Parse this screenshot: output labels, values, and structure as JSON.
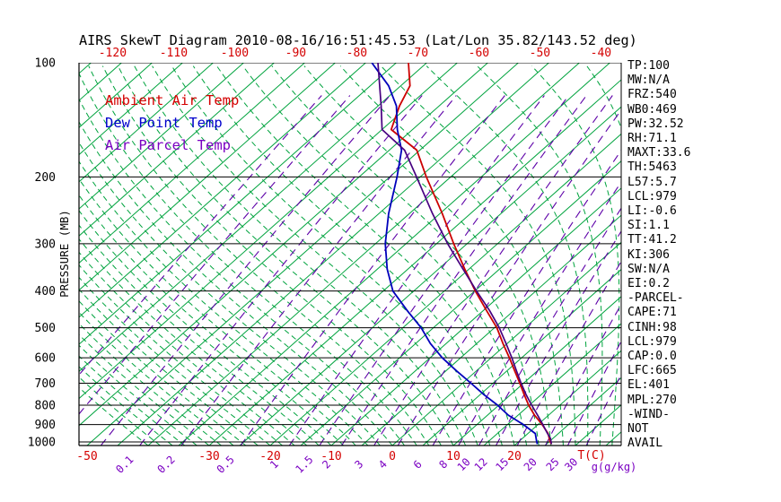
{
  "title": "AIRS SkewT Diagram 2010-08-16/16:51:45.53 (Lat/Lon 35.82/143.52 deg)",
  "colors": {
    "isotherm": "#00a33e",
    "moist_adiabat": "#00a33e",
    "mixing_ratio": "#5d00a8",
    "mixing_label": "#7a00c2",
    "temp": "#cc0000",
    "temp_label": "#d40000",
    "dewpoint": "#0000bb",
    "parcel": "#470080",
    "axis": "#000000"
  },
  "legend": {
    "items": [
      {
        "label": "Ambient Air Temp",
        "color": "#d40000"
      },
      {
        "label": "Dew Point Temp",
        "color": "#0000cc"
      },
      {
        "label": "Air Parcel Temp",
        "color": "#7a00c2"
      }
    ]
  },
  "axes": {
    "y_label": "PRESSURE (MB)",
    "pressure_ticks": [
      100,
      200,
      300,
      400,
      500,
      600,
      700,
      800,
      900,
      1000
    ],
    "top_temp_ticks": [
      -120,
      -110,
      -100,
      -90,
      -80,
      -70,
      -60,
      -50,
      -40
    ],
    "bottom_temp_ticks": [
      -50,
      -30,
      -20,
      -10,
      0,
      10,
      20
    ],
    "x_label_temp": "T(C)",
    "x_label_mixing": "g(g/kg)"
  },
  "stats_panel": [
    "TP:100",
    "MW:N/A",
    "FRZ:540",
    "WB0:469",
    "PW:32.52",
    "RH:71.1",
    "MAXT:33.6",
    "TH:5463",
    "L57:5.7",
    "LCL:979",
    "LI:-0.6",
    "SI:1.1",
    "TT:41.2",
    "KI:306",
    "SW:N/A",
    "EI:0.2",
    "-PARCEL-",
    "CAPE:71",
    "CINH:98",
    "LCL:979",
    "CAP:0.0",
    "LFC:665",
    "EL:401",
    "MPL:270",
    "-WIND-",
    "NOT",
    "AVAIL"
  ],
  "chart_data": {
    "type": "line",
    "subtype": "skew-t-log-p",
    "title": "AIRS SkewT Diagram 2010-08-16/16:51:45.53 (Lat/Lon 35.82/143.52 deg)",
    "xlabel": "Temperature (C), skewed isotherms",
    "ylabel": "PRESSURE (MB), logarithmic 100-1000",
    "pressure_range_mb": [
      100,
      1022
    ],
    "isotherms_c": {
      "min": -120,
      "max": 45,
      "step": 5,
      "label_step": 10
    },
    "moist_adiabats_start_c": {
      "min": -40,
      "max": 44,
      "step": 2
    },
    "mixing_ratio_lines_g_kg": [
      0.1,
      0.2,
      0.5,
      1,
      1.5,
      2,
      3,
      4,
      6,
      8,
      10,
      12,
      15,
      20,
      25,
      30
    ],
    "mixing_ratio_lines_unlabeled": [
      0.01,
      0.02,
      0.05
    ],
    "series": [
      {
        "id": "ambient-air-temp",
        "name": "Ambient Air Temp",
        "color": "#cc0000",
        "width": 1.8,
        "points_p_mb_t_c": [
          [
            1013,
            25.8
          ],
          [
            1000,
            25.2
          ],
          [
            950,
            23.3
          ],
          [
            900,
            20.7
          ],
          [
            850,
            17.7
          ],
          [
            800,
            14.9
          ],
          [
            750,
            12.2
          ],
          [
            700,
            9.4
          ],
          [
            650,
            6.3
          ],
          [
            600,
            3.0
          ],
          [
            550,
            -0.7
          ],
          [
            500,
            -4.6
          ],
          [
            450,
            -9.5
          ],
          [
            400,
            -14.9
          ],
          [
            350,
            -20.7
          ],
          [
            300,
            -27.2
          ],
          [
            250,
            -34.6
          ],
          [
            200,
            -44.0
          ],
          [
            170,
            -50.5
          ],
          [
            150,
            -58.5
          ],
          [
            130,
            -61.5
          ],
          [
            115,
            -63.5
          ],
          [
            100,
            -68.0
          ]
        ]
      },
      {
        "id": "dew-point-temp",
        "name": "Dew Point Temp",
        "color": "#0000bb",
        "width": 1.8,
        "points_p_mb_t_c": [
          [
            1013,
            23.5
          ],
          [
            1000,
            23.0
          ],
          [
            950,
            21.2
          ],
          [
            900,
            17.6
          ],
          [
            850,
            13.4
          ],
          [
            800,
            9.8
          ],
          [
            750,
            5.6
          ],
          [
            700,
            1.4
          ],
          [
            650,
            -3.2
          ],
          [
            600,
            -8.0
          ],
          [
            550,
            -12.6
          ],
          [
            500,
            -17.0
          ],
          [
            450,
            -22.5
          ],
          [
            400,
            -28.4
          ],
          [
            350,
            -33.4
          ],
          [
            300,
            -38.4
          ],
          [
            250,
            -43.4
          ],
          [
            200,
            -48.8
          ],
          [
            170,
            -53.0
          ],
          [
            150,
            -57.5
          ],
          [
            130,
            -62.0
          ],
          [
            115,
            -67.0
          ],
          [
            100,
            -74.0
          ]
        ]
      },
      {
        "id": "air-parcel-temp",
        "name": "Air Parcel Temp",
        "color": "#470080",
        "width": 1.7,
        "points_p_mb_t_c": [
          [
            1013,
            25.8
          ],
          [
            979,
            24.6
          ],
          [
            950,
            23.2
          ],
          [
            900,
            20.8
          ],
          [
            850,
            18.2
          ],
          [
            800,
            15.4
          ],
          [
            750,
            12.5
          ],
          [
            700,
            9.6
          ],
          [
            650,
            6.6
          ],
          [
            600,
            3.4
          ],
          [
            550,
            -0.2
          ],
          [
            500,
            -4.2
          ],
          [
            450,
            -9.0
          ],
          [
            400,
            -14.7
          ],
          [
            350,
            -21.0
          ],
          [
            300,
            -28.2
          ],
          [
            250,
            -36.2
          ],
          [
            200,
            -45.6
          ],
          [
            170,
            -52.5
          ],
          [
            150,
            -60.0
          ],
          [
            130,
            -64.5
          ],
          [
            100,
            -73.0
          ]
        ]
      }
    ]
  }
}
